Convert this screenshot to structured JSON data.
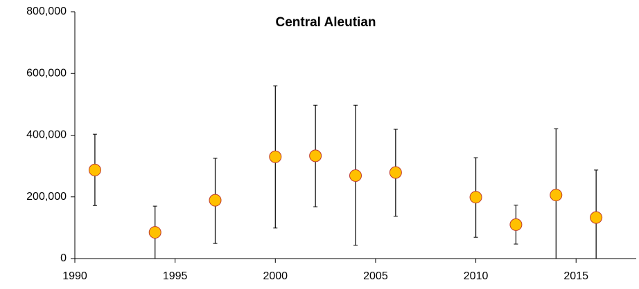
{
  "chart_data": {
    "type": "scatter",
    "title": "Central Aleutian",
    "x": [
      1991,
      1994,
      1997,
      2000,
      2002,
      2004,
      2006,
      2010,
      2012,
      2014,
      2016
    ],
    "series": [
      {
        "color": "#ffc000",
        "values": [
          287000,
          85000,
          189000,
          330000,
          333000,
          269000,
          279000,
          199000,
          110000,
          206000,
          133000
        ],
        "lower": [
          172000,
          0,
          49000,
          99000,
          168000,
          43000,
          137000,
          69000,
          47000,
          0,
          0
        ],
        "upper": [
          403000,
          170000,
          325000,
          560000,
          497000,
          497000,
          419000,
          327000,
          173000,
          421000,
          287000
        ]
      }
    ],
    "xlim": [
      1990,
      2018
    ],
    "xticks": [
      1990,
      1995,
      2000,
      2005,
      2010,
      2015
    ],
    "ylim": [
      0,
      800000
    ],
    "yticks": [
      0,
      {
        "value": 200000,
        "label": "200,000"
      },
      {
        "value": 400000,
        "label": "400,000"
      },
      {
        "value": 600000,
        "label": "600,000"
      },
      {
        "value": 800000,
        "label": "800,000"
      }
    ],
    "grid": false
  }
}
